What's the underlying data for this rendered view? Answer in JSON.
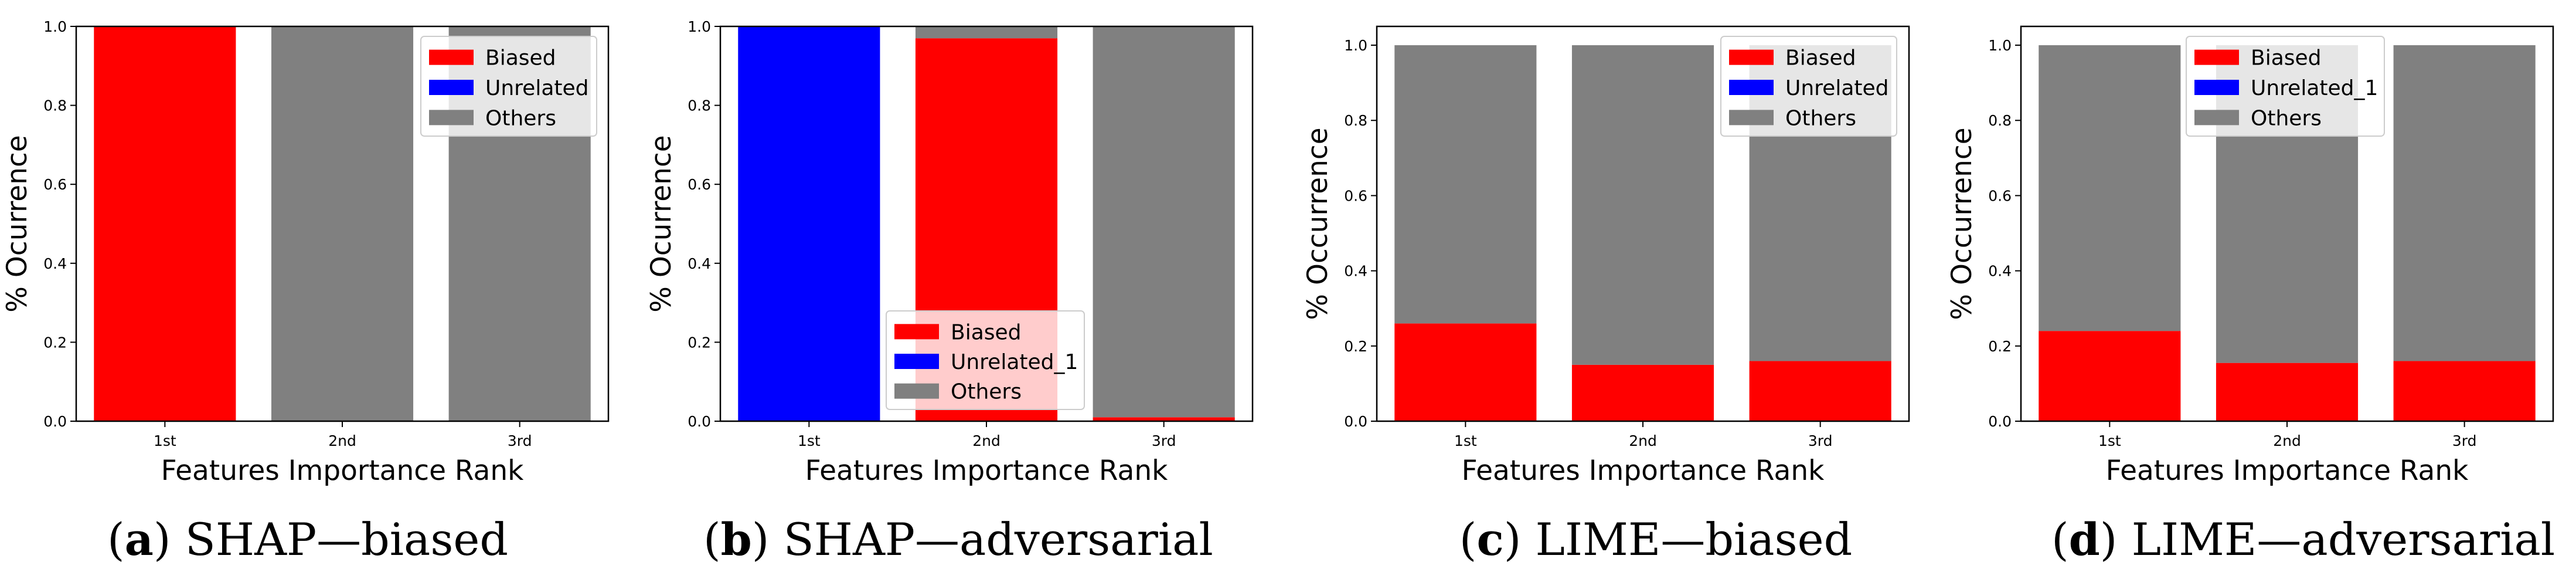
{
  "figure": {
    "captions": [
      {
        "letter": "a",
        "paren_open": "(",
        "paren_close": ")",
        "text": " SHAP—biased"
      },
      {
        "letter": "b",
        "paren_open": "(",
        "paren_close": ")",
        "text": " SHAP—adversarial"
      },
      {
        "letter": "c",
        "paren_open": "(",
        "paren_close": ")",
        "text": " LIME—biased"
      },
      {
        "letter": "d",
        "paren_open": "(",
        "paren_close": ")",
        "text": " LIME—adversarial"
      }
    ]
  },
  "colors": {
    "biased": "#ff0000",
    "unrelated": "#0000ff",
    "others": "#808080"
  },
  "chart_data": [
    {
      "type": "bar",
      "stacked": true,
      "categories": [
        "1st",
        "2nd",
        "3rd"
      ],
      "series": [
        {
          "name": "Biased",
          "color": "#ff0000",
          "values": [
            1.0,
            0.0,
            0.0
          ]
        },
        {
          "name": "Unrelated",
          "color": "#0000ff",
          "values": [
            0.0,
            0.0,
            0.0
          ]
        },
        {
          "name": "Others",
          "color": "#808080",
          "values": [
            0.0,
            1.0,
            1.0
          ]
        }
      ],
      "xlabel": "Features Importance Rank",
      "ylabel": "% Ocurrence",
      "ylim": [
        0,
        1.0
      ],
      "yticks": [
        "0.0",
        "0.2",
        "0.4",
        "0.6",
        "0.8",
        "1.0"
      ],
      "legend_position": "top-right"
    },
    {
      "type": "bar",
      "stacked": true,
      "categories": [
        "1st",
        "2nd",
        "3rd"
      ],
      "series": [
        {
          "name": "Biased",
          "color": "#ff0000",
          "values": [
            0.0,
            0.97,
            0.01
          ]
        },
        {
          "name": "Unrelated_1",
          "color": "#0000ff",
          "values": [
            1.0,
            0.0,
            0.0
          ]
        },
        {
          "name": "Others",
          "color": "#808080",
          "values": [
            0.0,
            0.03,
            0.99
          ]
        }
      ],
      "xlabel": "Features Importance Rank",
      "ylabel": "% Ocurrence",
      "ylim": [
        0,
        1.0
      ],
      "yticks": [
        "0.0",
        "0.2",
        "0.4",
        "0.6",
        "0.8",
        "1.0"
      ],
      "legend_position": "bottom-right"
    },
    {
      "type": "bar",
      "stacked": true,
      "categories": [
        "1st",
        "2nd",
        "3rd"
      ],
      "series": [
        {
          "name": "Biased",
          "color": "#ff0000",
          "values": [
            0.26,
            0.15,
            0.16
          ]
        },
        {
          "name": "Unrelated",
          "color": "#0000ff",
          "values": [
            0.0,
            0.0,
            0.0
          ]
        },
        {
          "name": "Others",
          "color": "#808080",
          "values": [
            0.74,
            0.85,
            0.84
          ]
        }
      ],
      "xlabel": "Features Importance Rank",
      "ylabel": "% Occurrence",
      "ylim": [
        0,
        1.05
      ],
      "yticks": [
        "0.0",
        "0.2",
        "0.4",
        "0.6",
        "0.8",
        "1.0"
      ],
      "legend_position": "top-right"
    },
    {
      "type": "bar",
      "stacked": true,
      "categories": [
        "1st",
        "2nd",
        "3rd"
      ],
      "series": [
        {
          "name": "Biased",
          "color": "#ff0000",
          "values": [
            0.24,
            0.155,
            0.16
          ]
        },
        {
          "name": "Unrelated_1",
          "color": "#0000ff",
          "values": [
            0.0,
            0.0,
            0.0
          ]
        },
        {
          "name": "Others",
          "color": "#808080",
          "values": [
            0.76,
            0.845,
            0.84
          ]
        }
      ],
      "xlabel": "Features Importance Rank",
      "ylabel": "% Occurrence",
      "ylim": [
        0,
        1.05
      ],
      "yticks": [
        "0.0",
        "0.2",
        "0.4",
        "0.6",
        "0.8",
        "1.0"
      ],
      "legend_position": "top-left"
    }
  ]
}
